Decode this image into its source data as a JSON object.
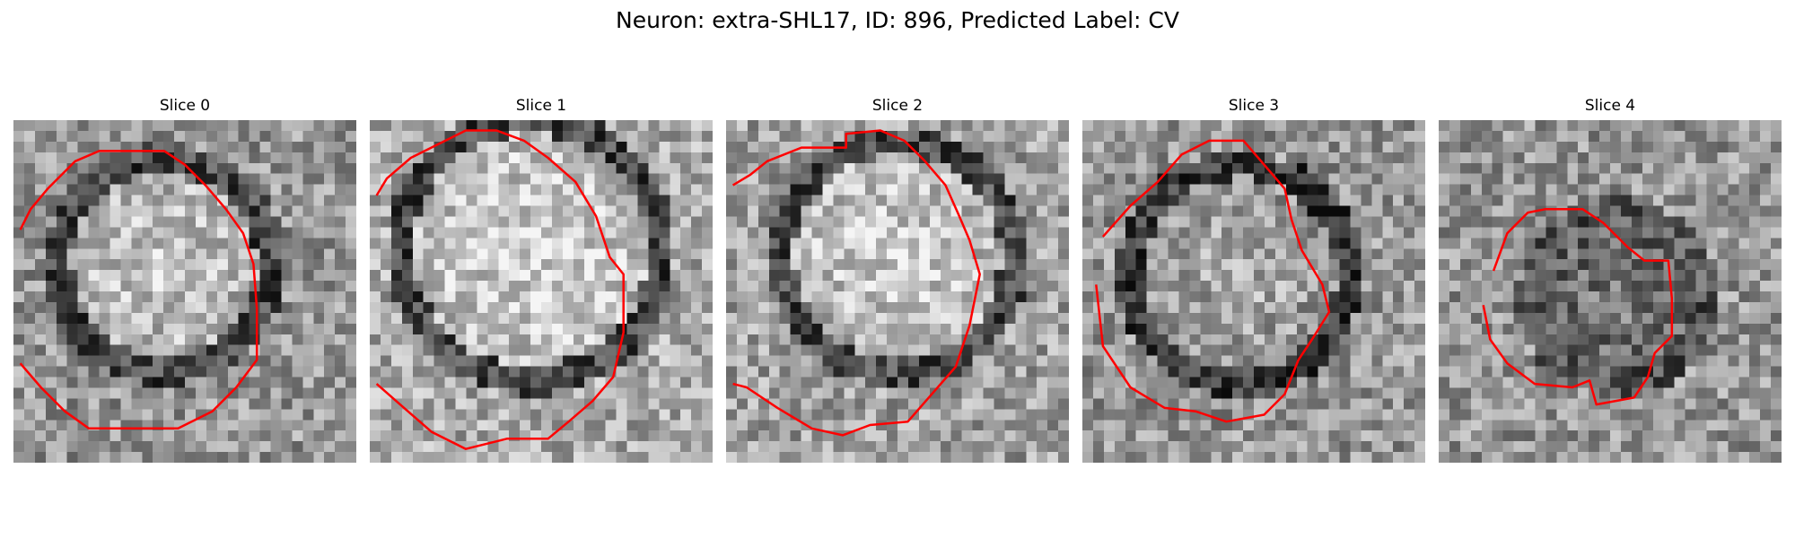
{
  "figure": {
    "title": "Neuron: extra-SHL17, ID: 896, Predicted Label: CV"
  },
  "colors": {
    "contour": "#ff0000",
    "background": "#ffffff",
    "image_colormap": "grayscale"
  },
  "panels": [
    {
      "title": "Slice 0"
    },
    {
      "title": "Slice 1"
    },
    {
      "title": "Slice 2"
    },
    {
      "title": "Slice 3"
    },
    {
      "title": "Slice 4"
    }
  ]
}
